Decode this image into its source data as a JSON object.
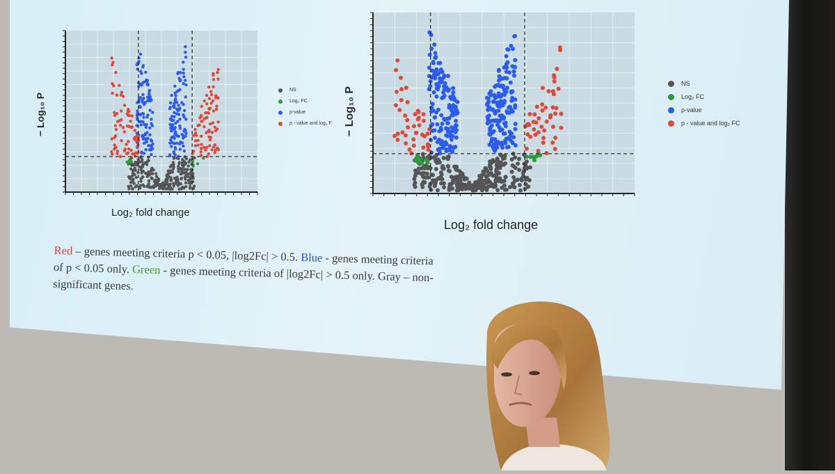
{
  "slide": {
    "plot_left": {
      "y_axis_label": "− Log₁₀ P",
      "x_axis_label": "Log₂ fold change",
      "legend": [
        "NS",
        "Log₂ FC",
        "p-value",
        "p - value and log₂ F"
      ]
    },
    "plot_right": {
      "y_axis_label": "− Log₁₀ P",
      "x_axis_label": "Log₂ fold change",
      "legend": [
        "NS",
        "Log₂ FC",
        "p-value",
        "p - value and log₂ FC"
      ]
    },
    "caption": {
      "red_word": "Red",
      "red_text": " – genes meeting criteria p < 0.05, |log2Fc| > 0.5. ",
      "blue_word": "Blue",
      "blue_text": " - genes meeting criteria of p < 0.05 only. ",
      "green_word": "Green",
      "green_text": " - genes meeting criteria of |log2Fc| > 0.5 only. Gray – non-significant genes."
    },
    "colors": {
      "ns": "#555555",
      "log2fc": "#2f9a3a",
      "pvalue": "#2a5cf0",
      "both": "#e04838"
    }
  },
  "scene": {
    "presenter": "woman with blonde hair standing in front of projection screen"
  }
}
